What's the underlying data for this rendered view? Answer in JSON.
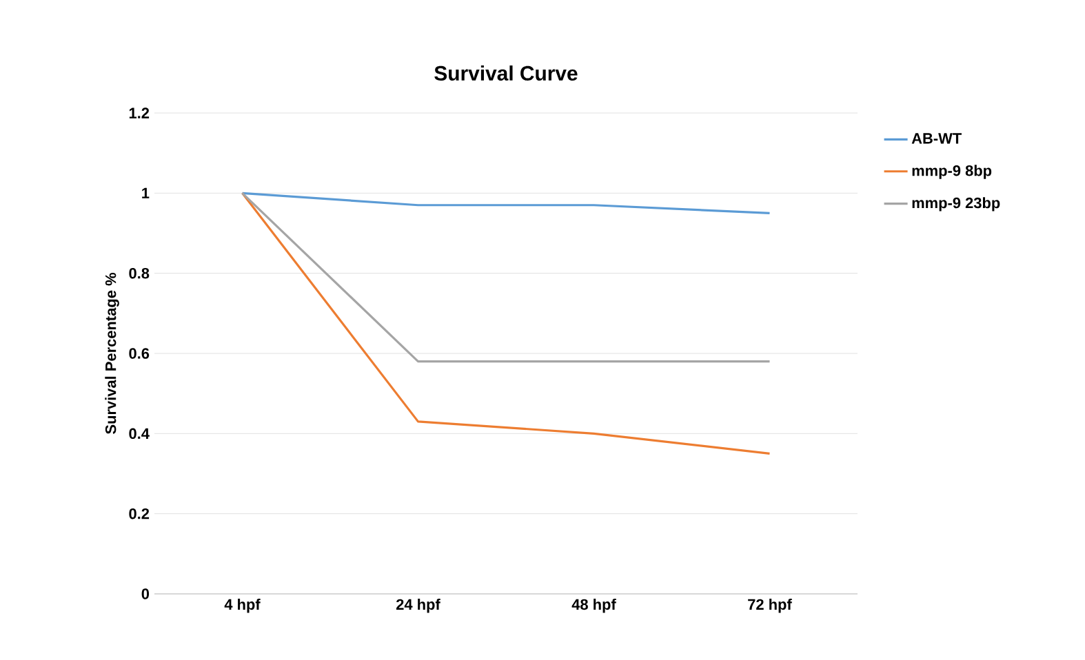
{
  "chart_data": {
    "type": "line",
    "title": "Survival Curve",
    "ylabel": "Survival Percentage %",
    "categories": [
      "4 hpf",
      "24 hpf",
      "48 hpf",
      "72 hpf"
    ],
    "series": [
      {
        "name": "AB-WT",
        "color": "#5b9bd5",
        "values": [
          1,
          0.97,
          0.97,
          0.95
        ]
      },
      {
        "name": "mmp-9 8bp",
        "color": "#ed7d31",
        "values": [
          1,
          0.43,
          0.4,
          0.35
        ]
      },
      {
        "name": "mmp-9 23bp",
        "color": "#a5a5a5",
        "values": [
          1,
          0.58,
          0.58,
          0.58
        ]
      }
    ],
    "ylim": [
      0,
      1.2
    ],
    "yticks": [
      0,
      0.2,
      0.4,
      0.6,
      0.8,
      1,
      1.2
    ],
    "grid": "y",
    "legend": "right",
    "marker": "none",
    "line_style": "solid"
  }
}
